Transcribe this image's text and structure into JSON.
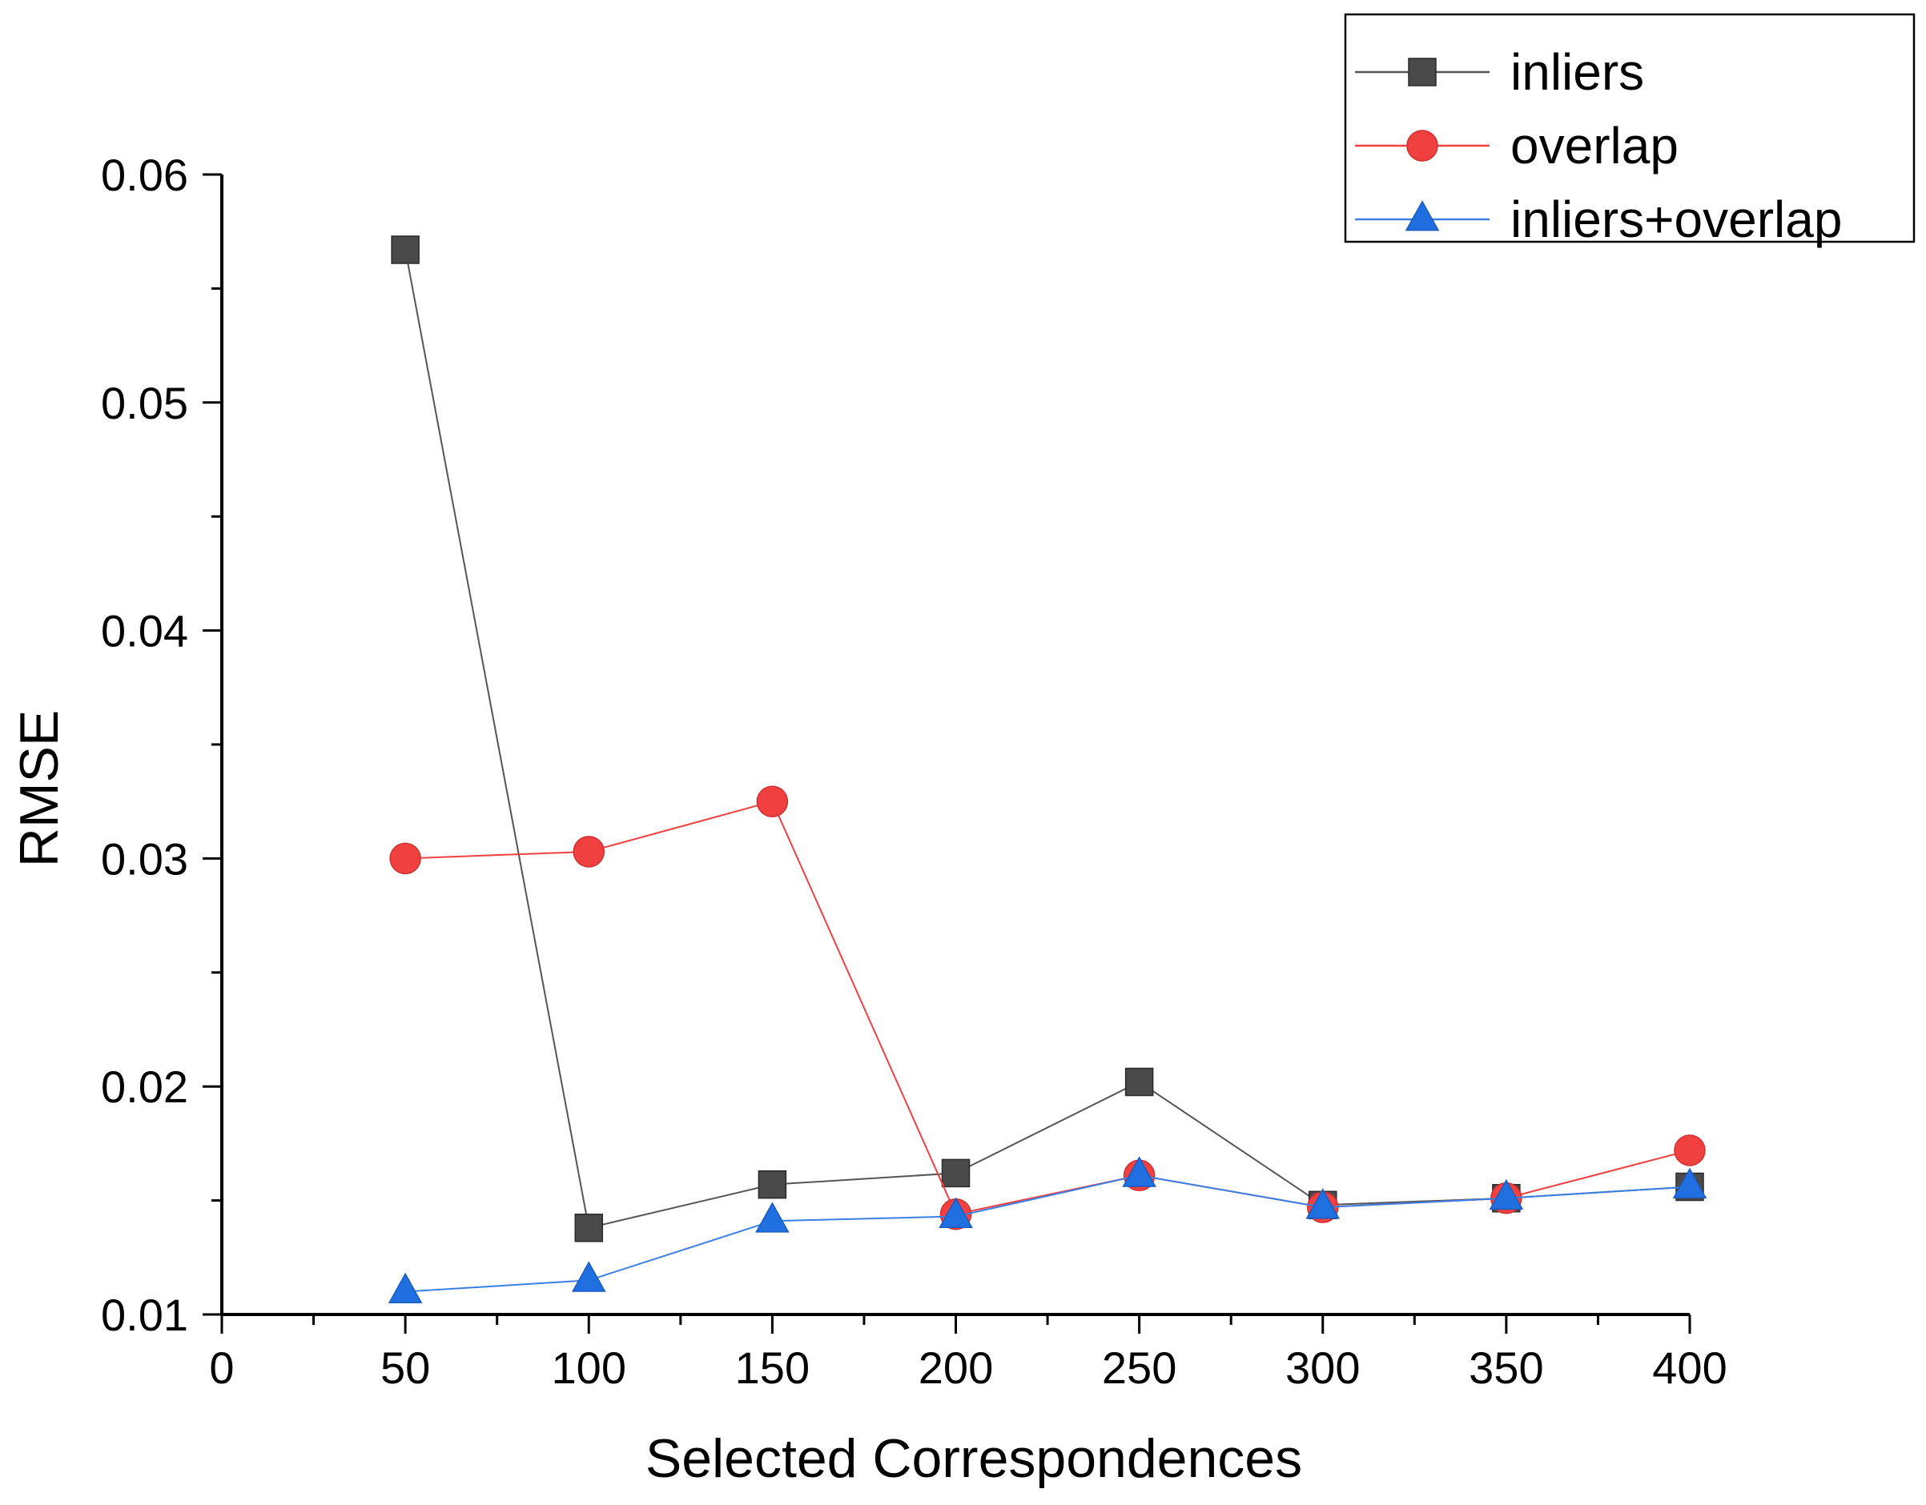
{
  "chart_data": {
    "type": "line",
    "title": "",
    "xlabel": "Selected Correspondences",
    "ylabel": "RMSE",
    "x": [
      50,
      100,
      150,
      200,
      250,
      300,
      350,
      400
    ],
    "xlim": [
      0,
      400
    ],
    "ylim": [
      0.01,
      0.06
    ],
    "x_ticks": [
      {
        "value": 0,
        "label": "0"
      },
      {
        "value": 50,
        "label": "50"
      },
      {
        "value": 100,
        "label": "100"
      },
      {
        "value": 150,
        "label": "150"
      },
      {
        "value": 200,
        "label": "200"
      },
      {
        "value": 250,
        "label": "250"
      },
      {
        "value": 300,
        "label": "300"
      },
      {
        "value": 350,
        "label": "350"
      },
      {
        "value": 400,
        "label": "400"
      }
    ],
    "y_ticks": [
      {
        "value": 0.01,
        "label": "0.01"
      },
      {
        "value": 0.02,
        "label": "0.02"
      },
      {
        "value": 0.03,
        "label": "0.03"
      },
      {
        "value": 0.04,
        "label": "0.04"
      },
      {
        "value": 0.05,
        "label": "0.05"
      },
      {
        "value": 0.06,
        "label": "0.06"
      }
    ],
    "grid": false,
    "legend_position": "top-right",
    "series": [
      {
        "name": "inliers",
        "color": "#4a4a4a",
        "line_color": "#555555",
        "marker": "square",
        "values": [
          0.0567,
          0.0138,
          0.0157,
          0.0162,
          0.0202,
          0.0148,
          0.0151,
          0.0156
        ]
      },
      {
        "name": "overlap",
        "color": "#f04040",
        "line_color": "#f04040",
        "marker": "circle",
        "values": [
          0.03,
          0.0303,
          0.0325,
          0.0144,
          0.0161,
          0.0147,
          0.0151,
          0.0172
        ]
      },
      {
        "name": "inliers+overlap",
        "color": "#1f6fe0",
        "line_color": "#3a7fe6",
        "marker": "triangle",
        "values": [
          0.011,
          0.0115,
          0.0141,
          0.0143,
          0.0161,
          0.0147,
          0.0151,
          0.0156
        ]
      }
    ]
  }
}
